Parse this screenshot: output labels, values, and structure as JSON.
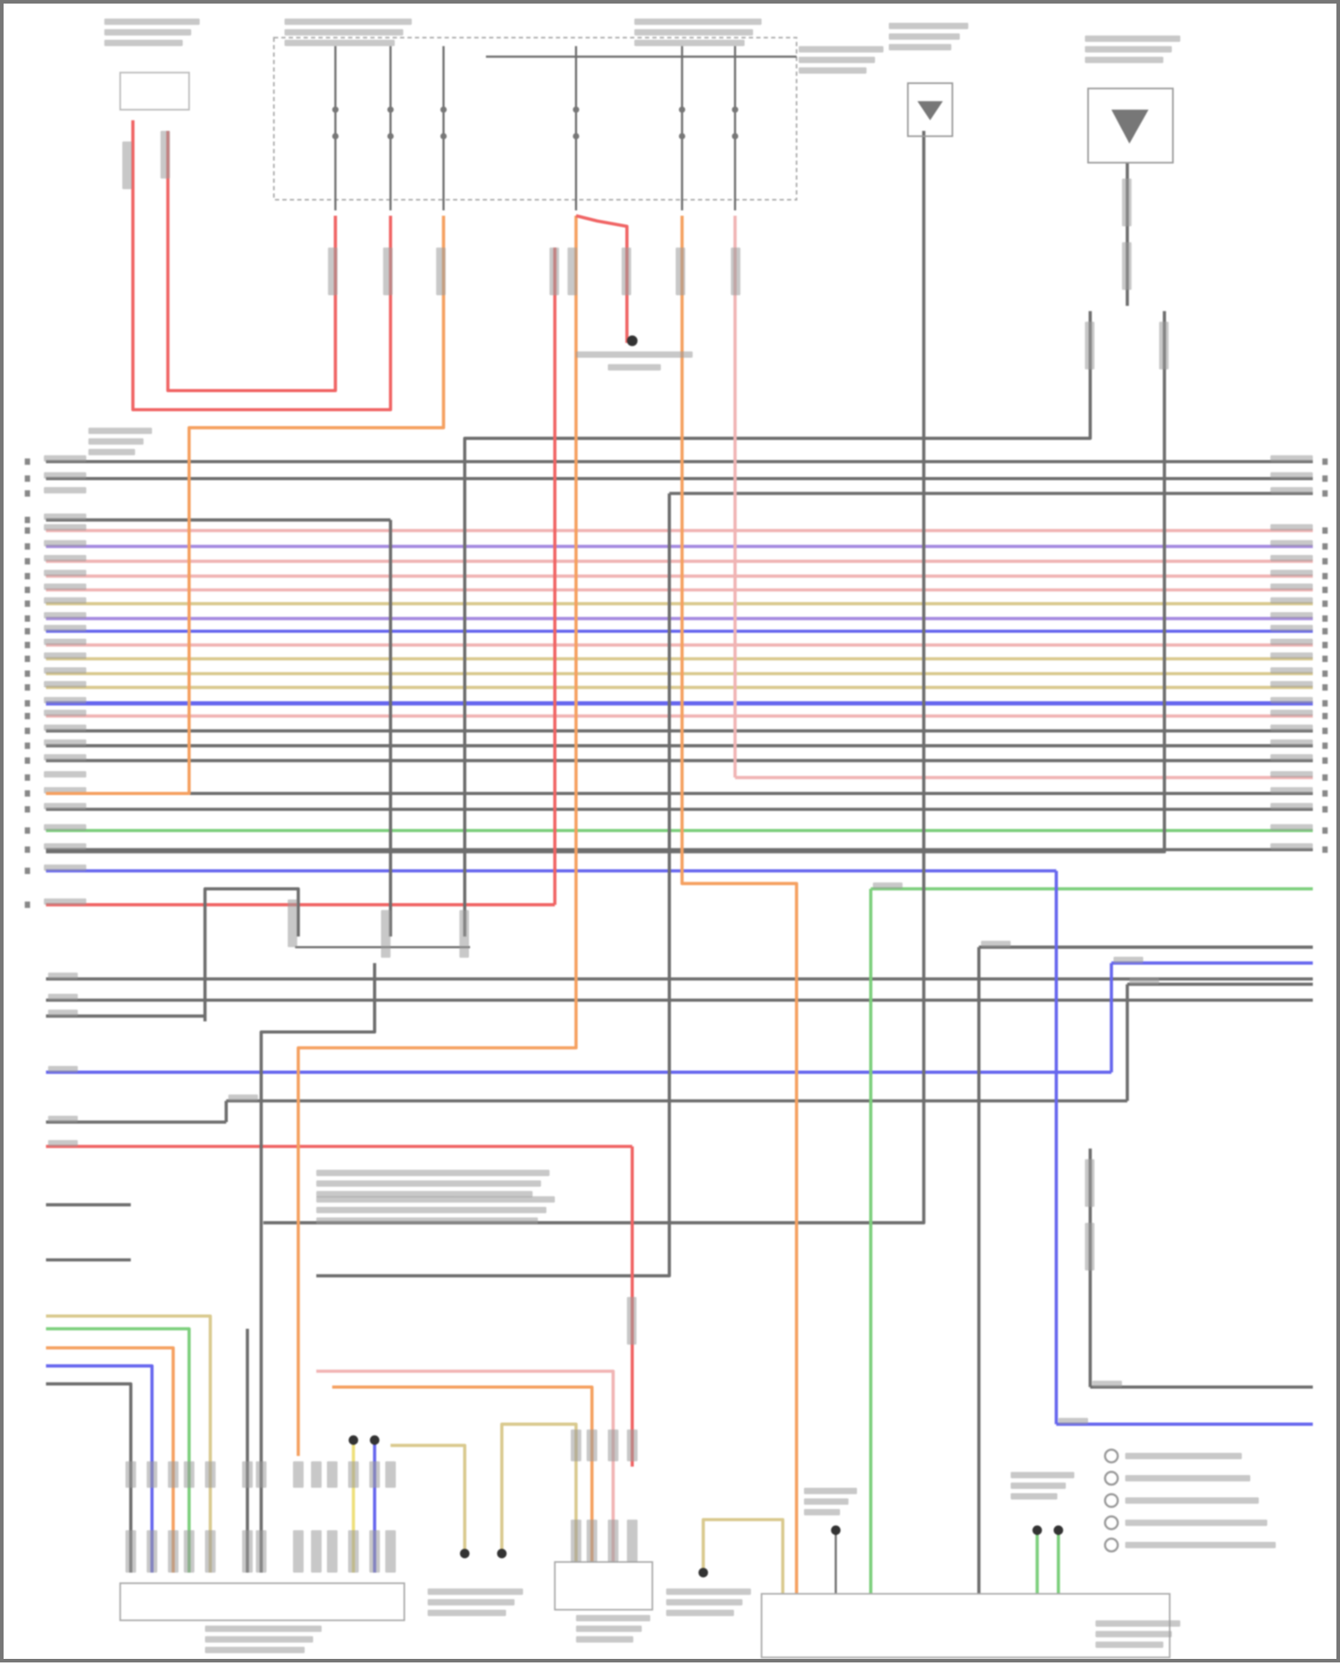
{
  "wire_colors": {
    "red": "#f06464",
    "orange": "#f5a060",
    "gray": "#6e6e6e",
    "blue": "#6666ee",
    "purple": "#a58ae0",
    "pink": "#f0b4b4",
    "green": "#7ccf7c",
    "tan": "#d9c98e",
    "yellow": "#eee07a"
  },
  "harness_rows": [
    "gray",
    "gray",
    "gray",
    "gray",
    "pink",
    "purple",
    "pink",
    "pink",
    "pink",
    "tan",
    "purple",
    "blue",
    "pink",
    "tan",
    "tan",
    "tan",
    "blue",
    "pink",
    "gray",
    "gray",
    "gray",
    "pink",
    "gray",
    "gray",
    "green",
    "gray",
    "blue",
    "red"
  ],
  "legend_items": 5
}
